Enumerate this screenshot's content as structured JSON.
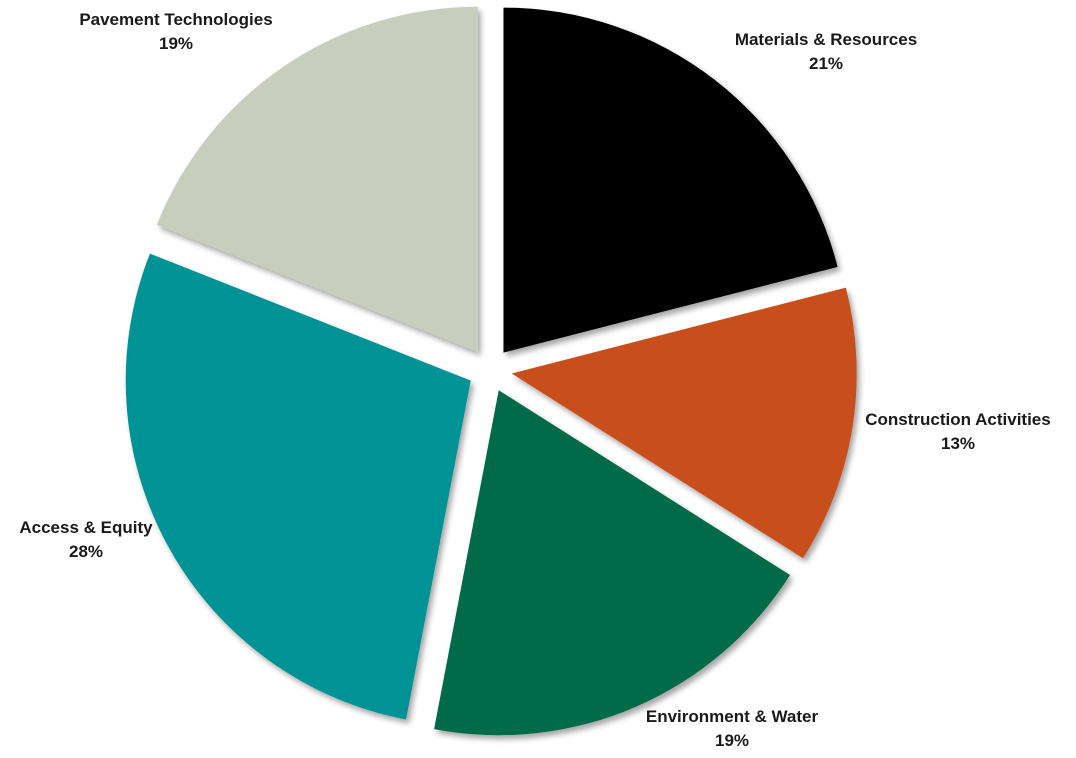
{
  "chart_data": {
    "type": "pie",
    "exploded": true,
    "slices": [
      {
        "label": "Materials & Resources",
        "value": 21,
        "value_label": "21%",
        "color": "#000000"
      },
      {
        "label": "Construction Activities",
        "value": 13,
        "value_label": "13%",
        "color": "#c8501e"
      },
      {
        "label": "Environment & Water",
        "value": 19,
        "value_label": "19%",
        "color": "#026a48"
      },
      {
        "label": "Access & Equity",
        "value": 28,
        "value_label": "28%",
        "color": "#039395"
      },
      {
        "label": "Pavement Technologies",
        "value": 19,
        "value_label": "19%",
        "color": "#c8cdbd"
      }
    ]
  }
}
